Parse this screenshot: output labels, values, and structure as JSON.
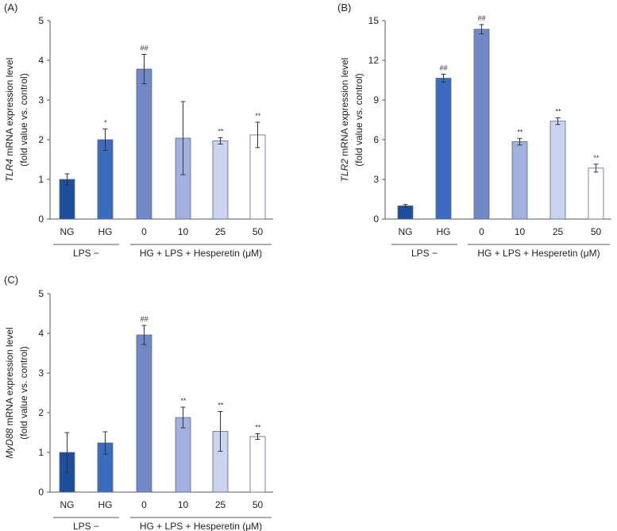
{
  "chart_data": [
    {
      "type": "bar",
      "panel_label": "(A)",
      "ylabel_gene": "TLR4",
      "ylabel_rest": " mRNA expression level",
      "ylabel_line2": "(fold value vs. control)",
      "ylim": [
        0,
        5
      ],
      "yticks": [
        0,
        1,
        2,
        3,
        4,
        5
      ],
      "categories": [
        "NG",
        "HG",
        "0",
        "10",
        "25",
        "50"
      ],
      "values": [
        1.0,
        2.0,
        3.78,
        2.04,
        1.97,
        2.12
      ],
      "errors": [
        0.14,
        0.27,
        0.37,
        0.92,
        0.08,
        0.32
      ],
      "significance": [
        "",
        "*",
        "##",
        "",
        "**",
        "**"
      ],
      "group_labels": [
        "LPS −",
        "HG + LPS + Hesperetin (μM)"
      ]
    },
    {
      "type": "bar",
      "panel_label": "(B)",
      "ylabel_gene": "TLR2",
      "ylabel_rest": " mRNA expression level",
      "ylabel_line2": "(fold value vs. control)",
      "ylim": [
        0,
        15
      ],
      "yticks": [
        0,
        3,
        6,
        9,
        12,
        15
      ],
      "categories": [
        "NG",
        "HG",
        "0",
        "10",
        "25",
        "50"
      ],
      "values": [
        1.0,
        10.65,
        14.35,
        5.85,
        7.4,
        3.85
      ],
      "errors": [
        0.1,
        0.3,
        0.35,
        0.25,
        0.25,
        0.3
      ],
      "significance": [
        "",
        "##",
        "##",
        "**",
        "**",
        "**"
      ],
      "group_labels": [
        "LPS −",
        "HG + LPS + Hesperetin (μM)"
      ]
    },
    {
      "type": "bar",
      "panel_label": "(C)",
      "ylabel_gene": "MyD88",
      "ylabel_rest": " mRNA expression level",
      "ylabel_line2": "(fold value vs. control)",
      "ylim": [
        0,
        5
      ],
      "yticks": [
        0,
        1,
        2,
        3,
        4,
        5
      ],
      "categories": [
        "NG",
        "HG",
        "0",
        "10",
        "25",
        "50"
      ],
      "values": [
        1.0,
        1.24,
        3.96,
        1.88,
        1.53,
        1.4
      ],
      "errors": [
        0.5,
        0.28,
        0.24,
        0.26,
        0.5,
        0.07
      ],
      "significance": [
        "",
        "",
        "##",
        "**",
        "**",
        "**"
      ],
      "group_labels": [
        "LPS −",
        "HG + LPS + Hesperetin (μM)"
      ]
    }
  ],
  "colors": {
    "bars": [
      "#1e4f9c",
      "#3a6bbf",
      "#7288c6",
      "#a2b0dd",
      "#cbd3ee",
      "#ffffff"
    ],
    "axis": "#555555",
    "text": "#222222"
  }
}
